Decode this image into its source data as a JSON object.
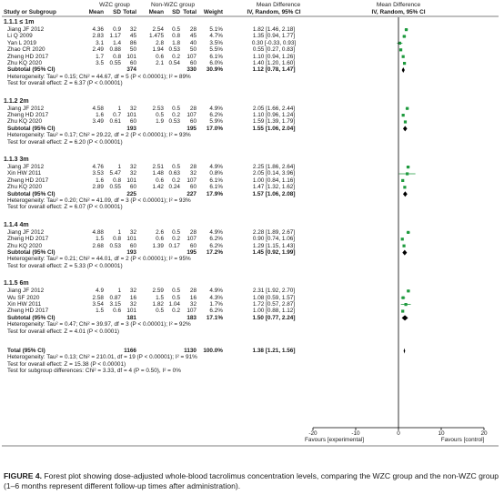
{
  "headers": {
    "wzc_group": "WZC group",
    "non_wzc_group": "Non-WZC group",
    "md_title_1": "Mean Difference",
    "md_title_2": "Mean Difference",
    "study": "Study or Subgroup",
    "mean": "Mean",
    "sd": "SD",
    "total": "Total",
    "mean2": "Mean",
    "sd2": "SD",
    "total2": "Total",
    "weight": "Weight",
    "ci_col": "IV, Random, 95% CI",
    "ci_col2": "IV, Random, 95% CI"
  },
  "subgroups": [
    {
      "title": "1.1.1 ≤ 1m",
      "studies": [
        {
          "name": "Jiang JF 2012",
          "m1": "4.36",
          "sd1": "0.9",
          "n1": "32",
          "m2": "2.54",
          "sd2": "0.5",
          "n2": "28",
          "w": "5.1%",
          "ci": "1.82 [1.46, 2.18]",
          "md": 1.82,
          "lo": 1.46,
          "hi": 2.18
        },
        {
          "name": "Li Q 2009",
          "m1": "2.83",
          "sd1": "1.17",
          "n1": "45",
          "m2": "1.475",
          "sd2": "0.8",
          "n2": "45",
          "w": "4.7%",
          "ci": "1.35 [0.94, 1.77]",
          "md": 1.35,
          "lo": 0.94,
          "hi": 1.77
        },
        {
          "name": "Yan L 2019",
          "m1": "3.1",
          "sd1": "1.4",
          "n1": "86",
          "m2": "2.8",
          "sd2": "1.8",
          "n2": "40",
          "w": "3.5%",
          "ci": "0.30 [-0.33, 0.93]",
          "md": 0.3,
          "lo": -0.33,
          "hi": 0.93
        },
        {
          "name": "Zhao CR 2020",
          "m1": "2.49",
          "sd1": "0.88",
          "n1": "50",
          "m2": "1.94",
          "sd2": "0.53",
          "n2": "50",
          "w": "5.5%",
          "ci": "0.55 [0.27, 0.83]",
          "md": 0.55,
          "lo": 0.27,
          "hi": 0.83
        },
        {
          "name": "Zheng HD 2017",
          "m1": "1.7",
          "sd1": "0.8",
          "n1": "101",
          "m2": "0.6",
          "sd2": "0.2",
          "n2": "107",
          "w": "6.1%",
          "ci": "1.10 [0.94, 1.26]",
          "md": 1.1,
          "lo": 0.94,
          "hi": 1.26
        },
        {
          "name": "Zhu KQ 2020",
          "m1": "3.5",
          "sd1": "0.55",
          "n1": "60",
          "m2": "2.1",
          "sd2": "0.54",
          "n2": "60",
          "w": "6.0%",
          "ci": "1.40 [1.20, 1.60]",
          "md": 1.4,
          "lo": 1.2,
          "hi": 1.6
        }
      ],
      "subtotal": {
        "label": "Subtotal (95% CI)",
        "n1": "374",
        "n2": "330",
        "w": "30.9%",
        "ci": "1.12 [0.78, 1.47]",
        "md": 1.12,
        "lo": 0.78,
        "hi": 1.47
      },
      "het": "Heterogeneity: Tau² = 0.15; Chi² = 44.67, df = 5 (P < 0.00001); I² = 89%",
      "test": "Test for overall effect: Z = 6.37 (P < 0.00001)"
    },
    {
      "title": "1.1.2 2m",
      "studies": [
        {
          "name": "Jiang JF 2012",
          "m1": "4.58",
          "sd1": "1",
          "n1": "32",
          "m2": "2.53",
          "sd2": "0.5",
          "n2": "28",
          "w": "4.9%",
          "ci": "2.05 [1.66, 2.44]",
          "md": 2.05,
          "lo": 1.66,
          "hi": 2.44
        },
        {
          "name": "Zheng HD 2017",
          "m1": "1.6",
          "sd1": "0.7",
          "n1": "101",
          "m2": "0.5",
          "sd2": "0.2",
          "n2": "107",
          "w": "6.2%",
          "ci": "1.10 [0.96, 1.24]",
          "md": 1.1,
          "lo": 0.96,
          "hi": 1.24
        },
        {
          "name": "Zhu KQ 2020",
          "m1": "3.49",
          "sd1": "0.61",
          "n1": "60",
          "m2": "1.9",
          "sd2": "0.53",
          "n2": "60",
          "w": "5.9%",
          "ci": "1.59 [1.39, 1.79]",
          "md": 1.59,
          "lo": 1.39,
          "hi": 1.79
        }
      ],
      "subtotal": {
        "label": "Subtotal (95% CI)",
        "n1": "193",
        "n2": "195",
        "w": "17.0%",
        "ci": "1.55 [1.06, 2.04]",
        "md": 1.55,
        "lo": 1.06,
        "hi": 2.04
      },
      "het": "Heterogeneity: Tau² = 0.17; Chi² = 29.22, df = 2 (P < 0.00001); I² = 93%",
      "test": "Test for overall effect: Z = 6.20 (P < 0.00001)"
    },
    {
      "title": "1.1.3 3m",
      "studies": [
        {
          "name": "Jiang JF 2012",
          "m1": "4.76",
          "sd1": "1",
          "n1": "32",
          "m2": "2.51",
          "sd2": "0.5",
          "n2": "28",
          "w": "4.9%",
          "ci": "2.25 [1.86, 2.64]",
          "md": 2.25,
          "lo": 1.86,
          "hi": 2.64
        },
        {
          "name": "Xin HW 2011",
          "m1": "3.53",
          "sd1": "5.47",
          "n1": "32",
          "m2": "1.48",
          "sd2": "0.63",
          "n2": "32",
          "w": "0.8%",
          "ci": "2.05 [0.14, 3.96]",
          "md": 2.05,
          "lo": 0.14,
          "hi": 3.96
        },
        {
          "name": "Zheng HD 2017",
          "m1": "1.6",
          "sd1": "0.8",
          "n1": "101",
          "m2": "0.6",
          "sd2": "0.2",
          "n2": "107",
          "w": "6.1%",
          "ci": "1.00 [0.84, 1.16]",
          "md": 1.0,
          "lo": 0.84,
          "hi": 1.16
        },
        {
          "name": "Zhu KQ 2020",
          "m1": "2.89",
          "sd1": "0.55",
          "n1": "60",
          "m2": "1.42",
          "sd2": "0.24",
          "n2": "60",
          "w": "6.1%",
          "ci": "1.47 [1.32, 1.62]",
          "md": 1.47,
          "lo": 1.32,
          "hi": 1.62
        }
      ],
      "subtotal": {
        "label": "Subtotal (95% CI)",
        "n1": "225",
        "n2": "227",
        "w": "17.9%",
        "ci": "1.57 [1.06, 2.08]",
        "md": 1.57,
        "lo": 1.06,
        "hi": 2.08
      },
      "het": "Heterogeneity: Tau² = 0.20; Chi² = 41.09, df = 3 (P < 0.00001); I² = 93%",
      "test": "Test for overall effect: Z = 6.07 (P < 0.00001)"
    },
    {
      "title": "1.1.4 4m",
      "studies": [
        {
          "name": "Jiang JF 2012",
          "m1": "4.88",
          "sd1": "1",
          "n1": "32",
          "m2": "2.6",
          "sd2": "0.5",
          "n2": "28",
          "w": "4.9%",
          "ci": "2.28 [1.89, 2.67]",
          "md": 2.28,
          "lo": 1.89,
          "hi": 2.67
        },
        {
          "name": "Zheng HD 2017",
          "m1": "1.5",
          "sd1": "0.8",
          "n1": "101",
          "m2": "0.6",
          "sd2": "0.2",
          "n2": "107",
          "w": "6.2%",
          "ci": "0.90 [0.74, 1.06]",
          "md": 0.9,
          "lo": 0.74,
          "hi": 1.06
        },
        {
          "name": "Zhu KQ 2020",
          "m1": "2.68",
          "sd1": "0.53",
          "n1": "60",
          "m2": "1.39",
          "sd2": "0.17",
          "n2": "60",
          "w": "6.2%",
          "ci": "1.29 [1.15, 1.43]",
          "md": 1.29,
          "lo": 1.15,
          "hi": 1.43
        }
      ],
      "subtotal": {
        "label": "Subtotal (95% CI)",
        "n1": "193",
        "n2": "195",
        "w": "17.2%",
        "ci": "1.45 [0.92, 1.99]",
        "md": 1.45,
        "lo": 0.92,
        "hi": 1.99
      },
      "het": "Heterogeneity: Tau² = 0.21; Chi² = 44.01, df = 2 (P < 0.00001); I² = 95%",
      "test": "Test for overall effect: Z = 5.33 (P < 0.00001)"
    },
    {
      "title": "1.1.5 6m",
      "studies": [
        {
          "name": "Jiang JF 2012",
          "m1": "4.9",
          "sd1": "1",
          "n1": "32",
          "m2": "2.59",
          "sd2": "0.5",
          "n2": "28",
          "w": "4.9%",
          "ci": "2.31 [1.92, 2.70]",
          "md": 2.31,
          "lo": 1.92,
          "hi": 2.7
        },
        {
          "name": "Wu SF 2020",
          "m1": "2.58",
          "sd1": "0.87",
          "n1": "16",
          "m2": "1.5",
          "sd2": "0.5",
          "n2": "16",
          "w": "4.3%",
          "ci": "1.08 [0.59, 1.57]",
          "md": 1.08,
          "lo": 0.59,
          "hi": 1.57
        },
        {
          "name": "Xin HW 2011",
          "m1": "3.54",
          "sd1": "3.15",
          "n1": "32",
          "m2": "1.82",
          "sd2": "1.04",
          "n2": "32",
          "w": "1.7%",
          "ci": "1.72 [0.57, 2.87]",
          "md": 1.72,
          "lo": 0.57,
          "hi": 2.87
        },
        {
          "name": "Zheng HD 2017",
          "m1": "1.5",
          "sd1": "0.6",
          "n1": "101",
          "m2": "0.5",
          "sd2": "0.2",
          "n2": "107",
          "w": "6.2%",
          "ci": "1.00 [0.88, 1.12]",
          "md": 1.0,
          "lo": 0.88,
          "hi": 1.12
        }
      ],
      "subtotal": {
        "label": "Subtotal (95% CI)",
        "n1": "181",
        "n2": "183",
        "w": "17.1%",
        "ci": "1.50 [0.77, 2.24]",
        "md": 1.5,
        "lo": 0.77,
        "hi": 2.24
      },
      "het": "Heterogeneity: Tau² = 0.47; Chi² = 39.97, df = 3 (P < 0.00001); I² = 92%",
      "test": "Test for overall effect: Z = 4.01 (P < 0.0001)"
    }
  ],
  "total": {
    "label": "Total (95% CI)",
    "n1": "1166",
    "n2": "1130",
    "w": "100.0%",
    "ci": "1.38 [1.21, 1.56]",
    "md": 1.38,
    "lo": 1.21,
    "hi": 1.56
  },
  "total_het": "Heterogeneity: Tau² = 0.13; Chi² = 210.01, df = 19 (P < 0.00001); I² = 91%",
  "total_test": "Test for overall effect: Z = 15.38 (P < 0.00001)",
  "total_subgroup": "Test for subgroup differences: Chi² = 3.33, df = 4 (P = 0.50), I² = 0%",
  "axis": {
    "ticks": [
      -20,
      -10,
      0,
      10,
      20
    ],
    "tick_labels": [
      "-20",
      "-10",
      "0",
      "10",
      "20"
    ],
    "xlim": [
      -20,
      20
    ],
    "label_left": "Favours [experimental]",
    "label_right": "Favours [control]"
  },
  "colors": {
    "marker": "#1e9a3e",
    "text": "#1a1a1a",
    "diamond": "#000000"
  },
  "caption": {
    "label": "FIGURE 4.",
    "text": " Forest plot showing dose-adjusted whole-blood tacrolimus concentration levels, comparing the WZC group and the non-WZC group (1–6 months represent different follow-up times after administration)."
  }
}
